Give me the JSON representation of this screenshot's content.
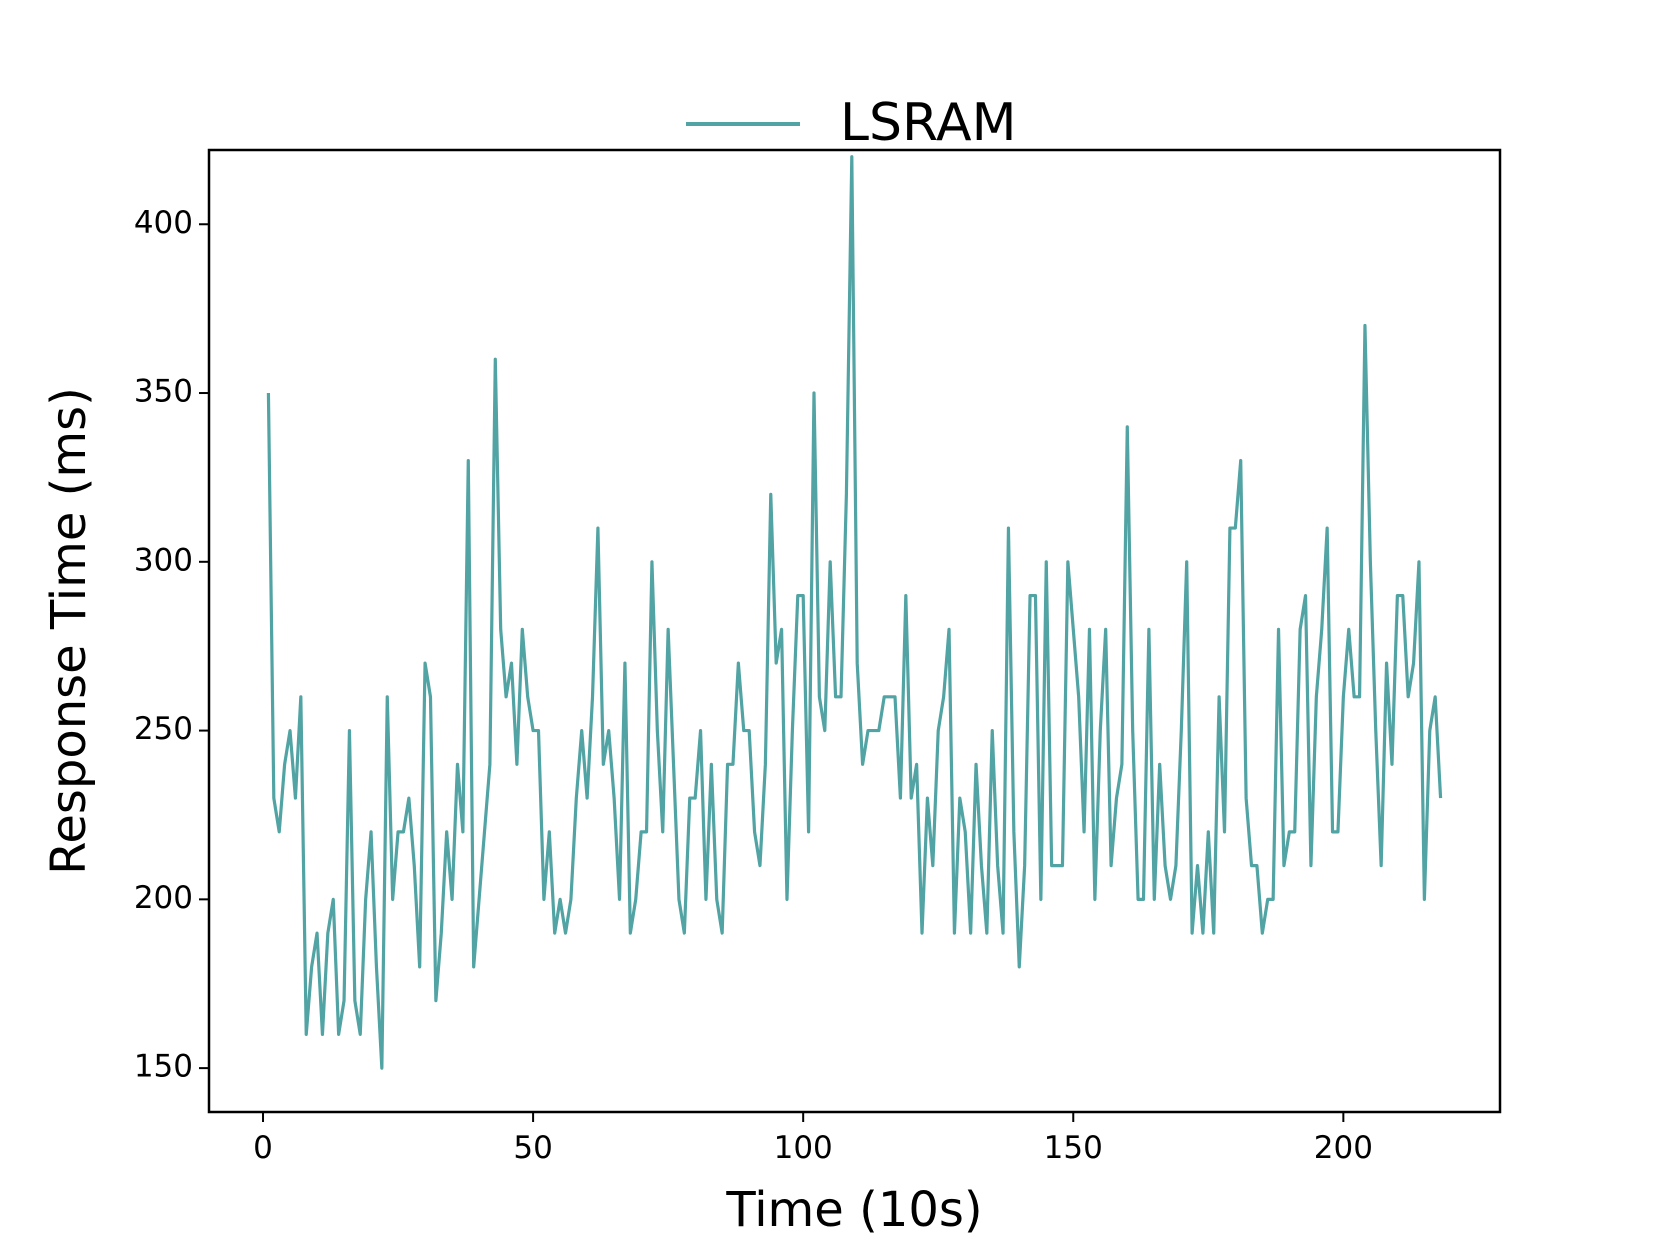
{
  "chart_data": {
    "type": "line",
    "title": "",
    "xlabel": "Time (10s)",
    "ylabel": "Response Time (ms)",
    "xlim": [
      -10,
      229
    ],
    "ylim": [
      137,
      422
    ],
    "xticks": [
      0,
      50,
      100,
      150,
      200
    ],
    "yticks": [
      150,
      200,
      250,
      300,
      350,
      400
    ],
    "grid": false,
    "legend": {
      "placement": "top-center"
    },
    "series": [
      {
        "name": "LSRAM",
        "color": "#52a3a3",
        "x": [
          1,
          2,
          3,
          4,
          5,
          6,
          7,
          8,
          9,
          10,
          11,
          12,
          13,
          14,
          15,
          16,
          17,
          18,
          19,
          20,
          21,
          22,
          23,
          24,
          25,
          26,
          27,
          28,
          29,
          30,
          31,
          32,
          33,
          34,
          35,
          36,
          37,
          38,
          39,
          40,
          41,
          42,
          43,
          44,
          45,
          46,
          47,
          48,
          49,
          50,
          51,
          52,
          53,
          54,
          55,
          56,
          57,
          58,
          59,
          60,
          61,
          62,
          63,
          64,
          65,
          66,
          67,
          68,
          69,
          70,
          71,
          72,
          73,
          74,
          75,
          76,
          77,
          78,
          79,
          80,
          81,
          82,
          83,
          84,
          85,
          86,
          87,
          88,
          89,
          90,
          91,
          92,
          93,
          94,
          95,
          96,
          97,
          98,
          99,
          100,
          101,
          102,
          103,
          104,
          105,
          106,
          107,
          108,
          109,
          110,
          111,
          112,
          113,
          114,
          115,
          116,
          117,
          118,
          119,
          120,
          121,
          122,
          123,
          124,
          125,
          126,
          127,
          128,
          129,
          130,
          131,
          132,
          133,
          134,
          135,
          136,
          137,
          138,
          139,
          140,
          141,
          142,
          143,
          144,
          145,
          146,
          147,
          148,
          149,
          150,
          151,
          152,
          153,
          154,
          155,
          156,
          157,
          158,
          159,
          160,
          161,
          162,
          163,
          164,
          165,
          166,
          167,
          168,
          169,
          170,
          171,
          172,
          173,
          174,
          175,
          176,
          177,
          178,
          179,
          180,
          181,
          182,
          183,
          184,
          185,
          186,
          187,
          188,
          189,
          190,
          191,
          192,
          193,
          194,
          195,
          196,
          197,
          198,
          199,
          200,
          201,
          202,
          203,
          204,
          205,
          206,
          207,
          208,
          209,
          210,
          211,
          212,
          213,
          214,
          215,
          216,
          217,
          218
        ],
        "y": [
          350,
          230,
          220,
          240,
          250,
          230,
          260,
          160,
          180,
          190,
          160,
          190,
          200,
          160,
          170,
          250,
          170,
          160,
          200,
          220,
          180,
          150,
          260,
          200,
          220,
          220,
          230,
          210,
          180,
          270,
          260,
          170,
          190,
          220,
          200,
          240,
          220,
          330,
          180,
          200,
          220,
          240,
          360,
          280,
          260,
          270,
          240,
          280,
          260,
          250,
          250,
          200,
          220,
          190,
          200,
          190,
          200,
          230,
          250,
          230,
          260,
          310,
          240,
          250,
          230,
          200,
          270,
          190,
          200,
          220,
          220,
          300,
          250,
          220,
          280,
          240,
          200,
          190,
          230,
          230,
          250,
          200,
          240,
          200,
          190,
          240,
          240,
          270,
          250,
          250,
          220,
          210,
          240,
          320,
          270,
          280,
          200,
          250,
          290,
          290,
          220,
          350,
          260,
          250,
          300,
          260,
          260,
          320,
          420,
          270,
          240,
          250,
          250,
          250,
          260,
          260,
          260,
          230,
          290,
          230,
          240,
          190,
          230,
          210,
          250,
          260,
          280,
          190,
          230,
          220,
          190,
          240,
          210,
          190,
          250,
          210,
          190,
          310,
          220,
          180,
          210,
          290,
          290,
          200,
          300,
          210,
          210,
          210,
          300,
          280,
          260,
          220,
          280,
          200,
          250,
          280,
          210,
          230,
          240,
          340,
          250,
          200,
          200,
          280,
          200,
          240,
          210,
          200,
          210,
          250,
          300,
          190,
          210,
          190,
          220,
          190,
          260,
          220,
          310,
          310,
          330,
          230,
          210,
          210,
          190,
          200,
          200,
          280,
          210,
          220,
          220,
          280,
          290,
          210,
          260,
          280,
          310,
          220,
          220,
          260,
          280,
          260,
          260,
          370,
          300,
          250,
          210,
          270,
          240,
          290,
          290,
          260,
          270,
          300,
          200,
          250,
          260,
          230
        ]
      }
    ]
  }
}
